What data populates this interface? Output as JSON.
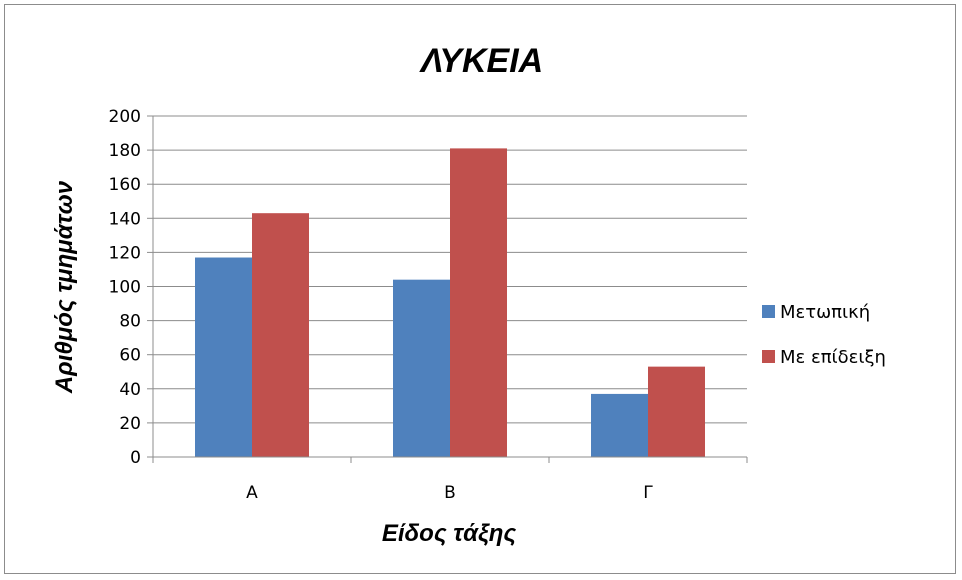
{
  "chart_data": {
    "type": "bar",
    "title": "ΛΥΚΕΙΑ",
    "xlabel": "Είδος τάξης",
    "ylabel": "Αριθμός τμημάτων",
    "categories": [
      "Α",
      "Β",
      "Γ"
    ],
    "series": [
      {
        "name": "Μετωπική",
        "values": [
          117,
          104,
          37
        ],
        "color": "#4F81BD"
      },
      {
        "name": "Με επίδειξη",
        "values": [
          143,
          181,
          53
        ],
        "color": "#C0504D"
      }
    ],
    "ylim": [
      0,
      200
    ],
    "yticks": [
      "0",
      "20",
      "40",
      "60",
      "80",
      "100",
      "120",
      "140",
      "160",
      "180",
      "200"
    ],
    "grid": true,
    "legend": "right"
  }
}
